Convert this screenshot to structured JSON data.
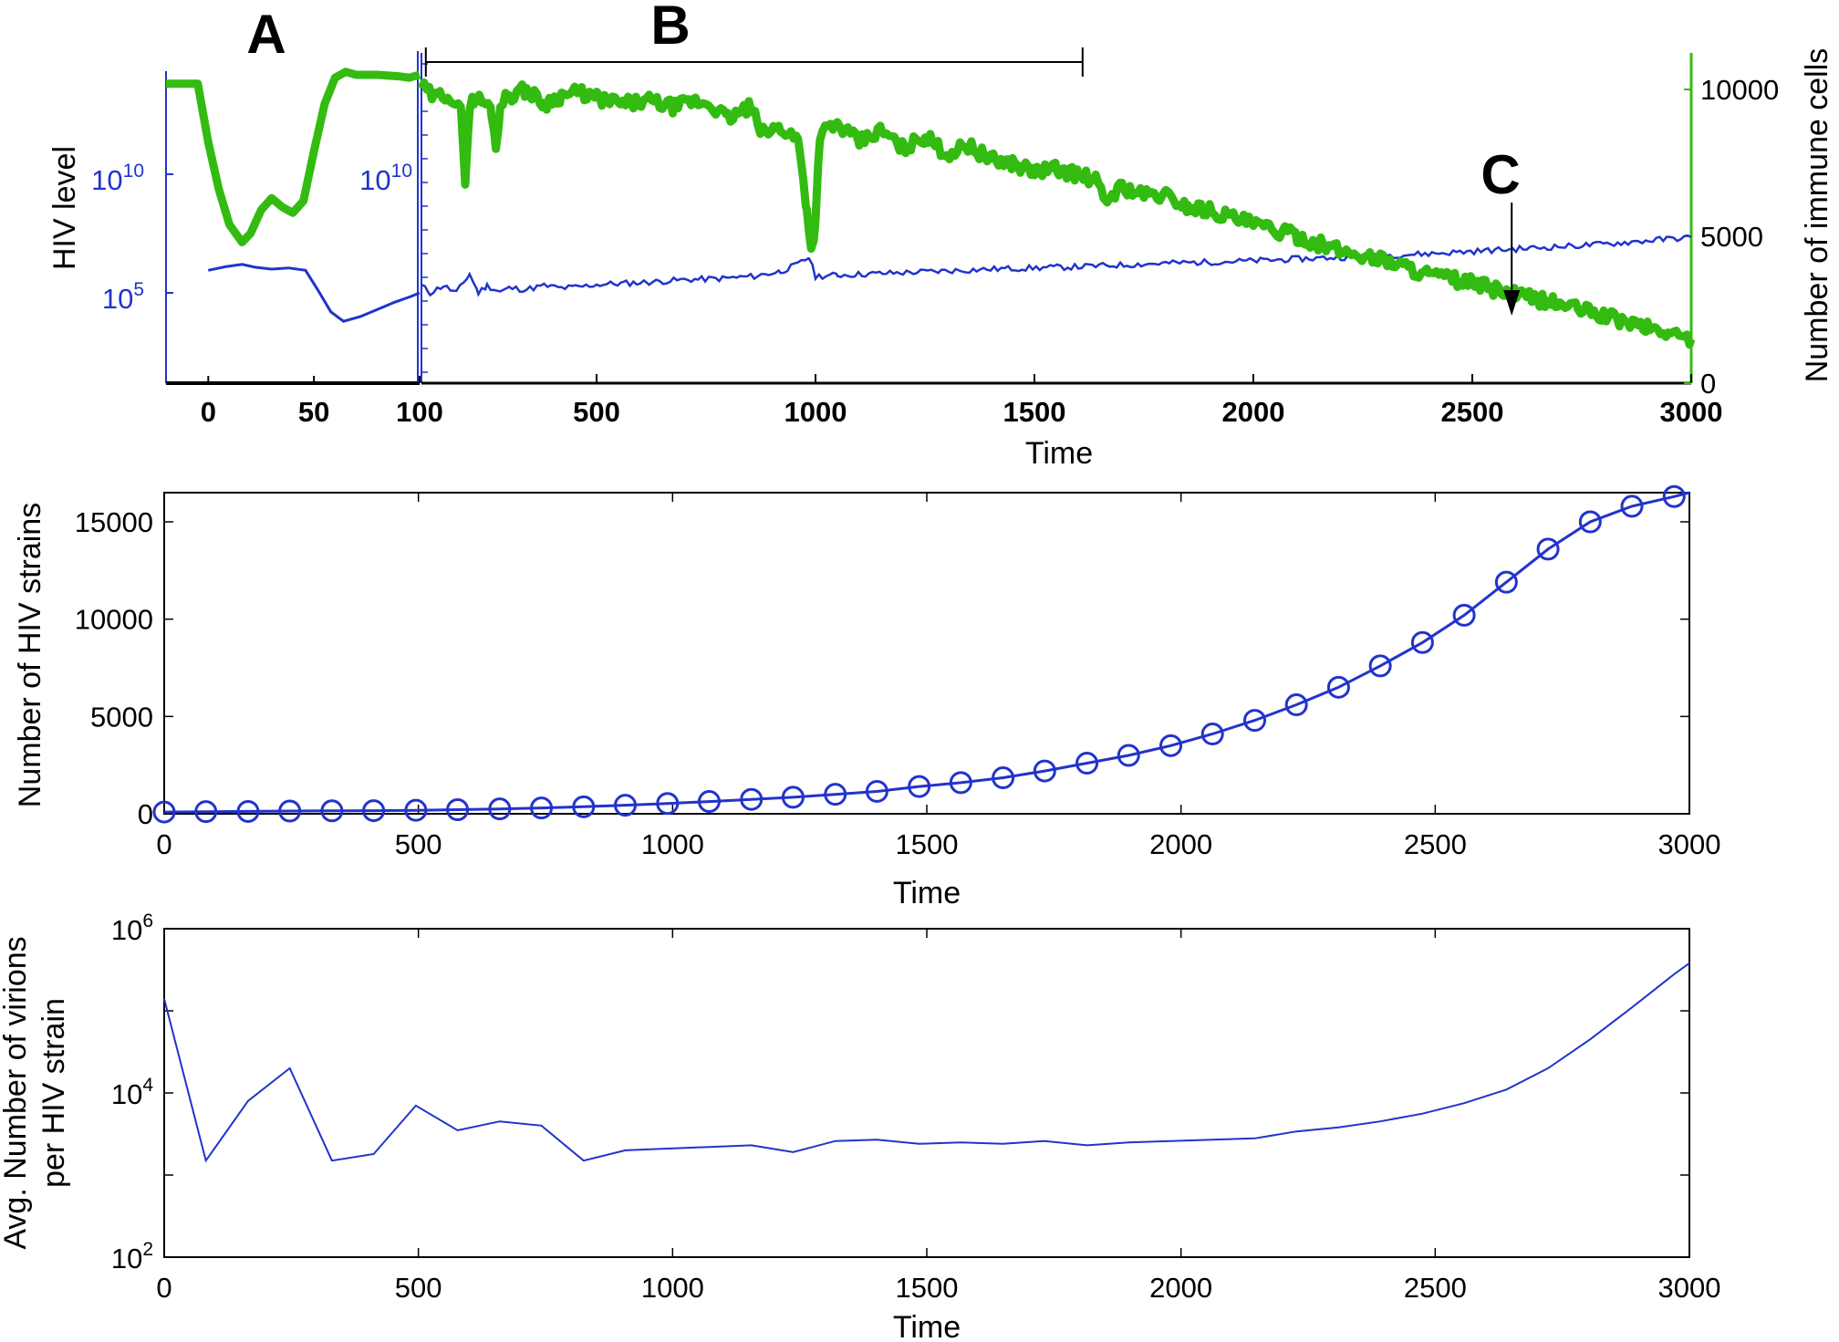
{
  "colors": {
    "hiv": "#2233cc",
    "immune": "#33bb11",
    "axis": "#000000"
  },
  "chart_data": [
    {
      "type": "line",
      "panel": "top",
      "xlabel": "Time",
      "ylabel_left": "HIV  level",
      "ylabel_right": "Number of immune cells",
      "letters": {
        "a": "A",
        "b": "B",
        "c": "C"
      },
      "inset": {
        "xlim": [
          -20,
          100
        ],
        "xticks": [
          0,
          50,
          100
        ],
        "xtick_labels": [
          "0",
          "50",
          "100"
        ],
        "ytick_labels": [
          "10^5",
          "10^10"
        ],
        "hiv_series": {
          "x": [
            0,
            8,
            16,
            22,
            30,
            38,
            46,
            52,
            58,
            64,
            72,
            80,
            88,
            96,
            100
          ],
          "log10": [
            5.95,
            6.1,
            6.2,
            6.08,
            6.0,
            6.05,
            5.95,
            5.1,
            4.2,
            3.8,
            4.0,
            4.3,
            4.6,
            4.85,
            5.0
          ]
        },
        "immune_series": {
          "x": [
            -20,
            -5,
            0,
            5,
            10,
            16,
            20,
            25,
            30,
            35,
            40,
            45,
            50,
            55,
            60,
            65,
            70,
            80,
            90,
            95,
            100
          ],
          "values": [
            10200,
            10200,
            8200,
            6600,
            5400,
            4800,
            5100,
            5900,
            6300,
            6000,
            5800,
            6200,
            7900,
            9500,
            10400,
            10600,
            10500,
            10500,
            10450,
            10400,
            10500
          ]
        }
      },
      "main": {
        "xlim": [
          100,
          3000
        ],
        "xticks": [
          500,
          1000,
          1500,
          2000,
          2500,
          3000
        ],
        "xtick_labels": [
          "500",
          "1000",
          "1500",
          "2000",
          "2500",
          "3000"
        ],
        "left_ytick_label": "10^10",
        "yright_ticks": [
          0,
          5000,
          10000
        ],
        "yright_tick_labels": [
          "0",
          "5000",
          "10000"
        ],
        "ylim_right": [
          0,
          10500
        ],
        "hiv_log10_range": [
          3,
          13.5
        ],
        "b_bracket": [
          110,
          1610
        ],
        "c_arrow_x": 2590,
        "hiv_series": {
          "x": [
            100,
            120,
            150,
            180,
            210,
            230,
            250,
            280,
            300,
            340,
            380,
            420,
            460,
            500,
            560,
            620,
            700,
            780,
            860,
            920,
            960,
            985,
            1000,
            1050,
            1200,
            1400,
            1600,
            1800,
            2000,
            2200,
            2400,
            2600,
            2800,
            3000
          ],
          "log10": [
            5.3,
            5.0,
            5.3,
            5.0,
            5.8,
            5.0,
            5.3,
            5.05,
            5.2,
            5.15,
            5.3,
            5.2,
            5.25,
            5.35,
            5.4,
            5.45,
            5.55,
            5.6,
            5.7,
            5.9,
            6.2,
            6.5,
            5.7,
            5.75,
            5.85,
            6.0,
            6.1,
            6.25,
            6.35,
            6.5,
            6.65,
            6.85,
            7.05,
            7.35
          ]
        },
        "immune_series": {
          "x": [
            100,
            130,
            160,
            190,
            200,
            210,
            220,
            240,
            260,
            270,
            280,
            300,
            340,
            380,
            420,
            460,
            500,
            560,
            620,
            680,
            720,
            760,
            800,
            850,
            880,
            920,
            960,
            980,
            990,
            1000,
            1010,
            1050,
            1100,
            1150,
            1200,
            1250,
            1300,
            1350,
            1400,
            1450,
            1500,
            1550,
            1600,
            1640,
            1660,
            1700,
            1750,
            1800,
            1850,
            1900,
            2000,
            2100,
            2200,
            2300,
            2400,
            2500,
            2600,
            2700,
            2800,
            2900,
            3000
          ],
          "values": [
            10100,
            9700,
            9900,
            9200,
            7000,
            9400,
            9700,
            9600,
            9300,
            8000,
            9500,
            9800,
            10000,
            9500,
            9800,
            9900,
            9700,
            9500,
            9600,
            9400,
            9600,
            9500,
            9000,
            9400,
            8500,
            8700,
            8300,
            6000,
            4500,
            5500,
            8500,
            8800,
            8200,
            8600,
            8000,
            8400,
            7800,
            8100,
            7600,
            7500,
            7200,
            7300,
            7100,
            6900,
            6200,
            6700,
            6400,
            6400,
            6000,
            5900,
            5400,
            5000,
            4500,
            4200,
            3700,
            3400,
            3000,
            2700,
            2300,
            1900,
            1500
          ]
        }
      }
    },
    {
      "type": "line",
      "panel": "middle",
      "xlabel": "Time",
      "ylabel": "Number of  HIV strains",
      "xlim": [
        0,
        3000
      ],
      "ylim": [
        0,
        16500
      ],
      "xticks": [
        0,
        500,
        1000,
        1500,
        2000,
        2500,
        3000
      ],
      "xtick_labels": [
        "0",
        "500",
        "1000",
        "1500",
        "2000",
        "2500",
        "3000"
      ],
      "yticks": [
        0,
        5000,
        10000,
        15000
      ],
      "ytick_labels": [
        "0",
        "5000",
        "10000",
        "15000"
      ],
      "marker": "circle",
      "series": [
        {
          "x": [
            0,
            82,
            165,
            247,
            330,
            412,
            495,
            577,
            660,
            742,
            825,
            907,
            990,
            1072,
            1155,
            1237,
            1320,
            1402,
            1485,
            1567,
            1650,
            1732,
            1815,
            1897,
            1980,
            2062,
            2145,
            2227,
            2310,
            2392,
            2475,
            2557,
            2640,
            2722,
            2805,
            2887,
            2970,
            3000
          ],
          "values": [
            90,
            110,
            120,
            140,
            150,
            160,
            180,
            210,
            250,
            300,
            360,
            440,
            530,
            630,
            740,
            850,
            1000,
            1150,
            1400,
            1600,
            1850,
            2200,
            2600,
            3000,
            3500,
            4100,
            4800,
            5600,
            6500,
            7600,
            8800,
            10200,
            11900,
            13600,
            15000,
            15800,
            16300,
            16500
          ]
        }
      ]
    },
    {
      "type": "line",
      "panel": "bottom",
      "xlabel": "Time",
      "ylabel_line1": "Avg. Number of virions",
      "ylabel_line2": "per  HIV strain",
      "yscale": "log",
      "xlim": [
        0,
        3000
      ],
      "ylim": [
        100,
        1000000
      ],
      "xticks": [
        0,
        500,
        1000,
        1500,
        2000,
        2500,
        3000
      ],
      "xtick_labels": [
        "0",
        "500",
        "1000",
        "1500",
        "2000",
        "2500",
        "3000"
      ],
      "ytick_labels": [
        "10^2",
        "10^4",
        "10^6"
      ],
      "series": [
        {
          "x": [
            0,
            82,
            165,
            247,
            330,
            412,
            495,
            577,
            660,
            742,
            825,
            907,
            990,
            1072,
            1155,
            1237,
            1320,
            1402,
            1485,
            1567,
            1650,
            1732,
            1815,
            1897,
            1980,
            2062,
            2145,
            2227,
            2310,
            2392,
            2475,
            2557,
            2640,
            2722,
            2805,
            2887,
            2970,
            3000
          ],
          "values": [
            140000,
            1500,
            8000,
            20000,
            1500,
            1800,
            7000,
            3500,
            4500,
            4000,
            1500,
            2000,
            2100,
            2200,
            2300,
            1900,
            2600,
            2700,
            2400,
            2500,
            2400,
            2600,
            2300,
            2500,
            2600,
            2700,
            2800,
            3400,
            3800,
            4500,
            5600,
            7500,
            11000,
            20000,
            45000,
            110000,
            280000,
            380000
          ]
        }
      ]
    }
  ]
}
